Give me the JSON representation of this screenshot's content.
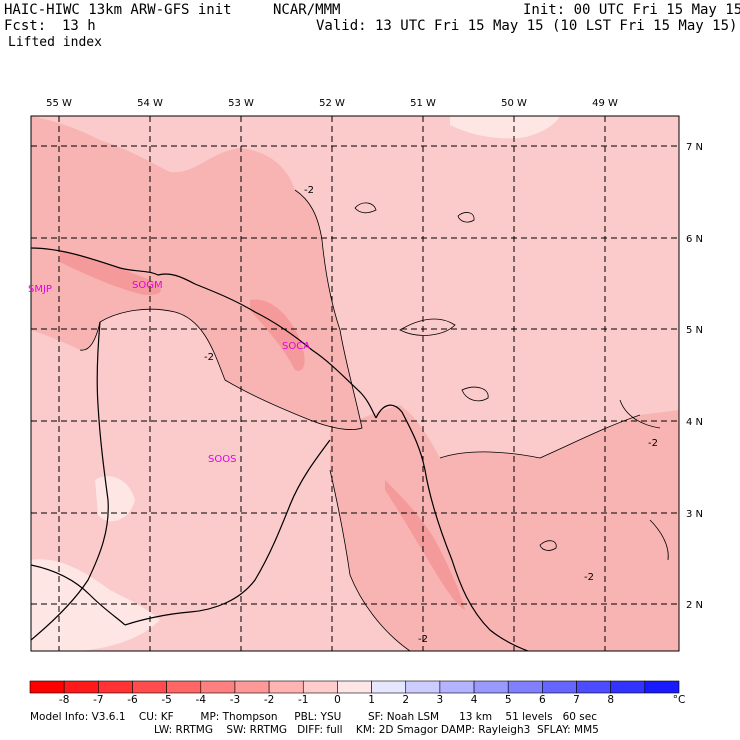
{
  "header": {
    "model_title": "HAIC-HIWC 13km ARW-GFS init",
    "org": "NCAR/MMM",
    "init": "Init: 00 UTC Fri 15 May 15",
    "fcst_label": "Fcst:",
    "fcst_value": "13 h",
    "valid": "Valid: 13 UTC Fri 15 May 15 (10 LST Fri 15 May 15)",
    "field": "Lifted index"
  },
  "map": {
    "lon_labels": [
      "55 W",
      "54 W",
      "53 W",
      "52 W",
      "51 W",
      "50 W",
      "49 W"
    ],
    "lat_labels": [
      "7 N",
      "6 N",
      "5 N",
      "4 N",
      "3 N",
      "2 N"
    ],
    "stations": [
      "SMJP",
      "SOGM",
      "SOCA",
      "SOOS"
    ],
    "contour_labels": [
      "-2",
      "-2",
      "-2",
      "-2",
      "-2"
    ],
    "colors": {
      "lt_minus3": "#f59a9a",
      "minus3_to_minus2": "#f8b3b3",
      "minus2_to_minus1": "#fbcaca",
      "minus1_to_0": "#fde6e4",
      "station": "#e600e6"
    }
  },
  "colorbar": {
    "levels": [
      "-8",
      "-7",
      "-6",
      "-5",
      "-4",
      "-3",
      "-2",
      "-1",
      "0",
      "1",
      "2",
      "3",
      "4",
      "5",
      "6",
      "7",
      "8"
    ],
    "unit": "°C",
    "colors": [
      "#ff0000",
      "#ff1a1a",
      "#ff3333",
      "#ff4d4d",
      "#ff6666",
      "#ff8080",
      "#ff9999",
      "#ffb3b3",
      "#ffcccc",
      "#ffe6e6",
      "#e6e6ff",
      "#ccccff",
      "#b3b3ff",
      "#9999ff",
      "#8080ff",
      "#6666ff",
      "#4d4dff",
      "#3333ff",
      "#1a1aff"
    ]
  },
  "footer": {
    "line1": "Model Info: V3.6.1    CU: KF        MP: Thompson     PBL: YSU        SF: Noah LSM      13 km    51 levels   60 sec",
    "line2": "LW: RRTMG    SW: RRTMG   DIFF: full    KM: 2D Smagor DAMP: Rayleigh3  SFLAY: MM5"
  }
}
